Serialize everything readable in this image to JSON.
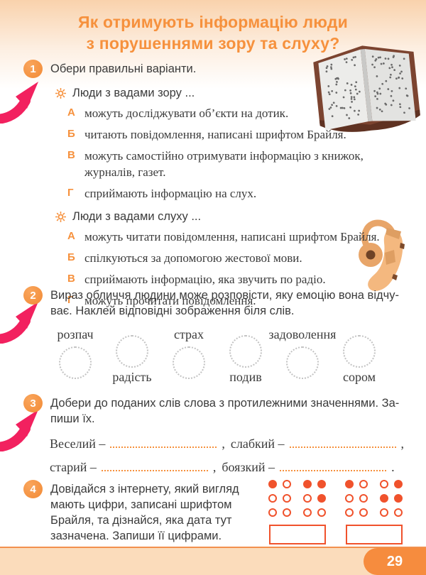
{
  "title": {
    "line1": "Як отримують інформацію люди",
    "line2": "з порушеннями зору та слуху?"
  },
  "colors": {
    "accent_orange": "#f6913d",
    "braille_red": "#f0522c",
    "arrow_pink": "#f2215f",
    "peach": "#fbdcbb",
    "text_dark": "#3b3b3b"
  },
  "task1": {
    "number": "1",
    "instruction": "Обери правильні варіанти.",
    "groups": [
      {
        "label": "Люди з вадами зору ...",
        "options": [
          {
            "letter": "А",
            "text": "можуть досліджувати об’єкти на дотик."
          },
          {
            "letter": "Б",
            "text": "читають повідомлення, написані шрифтом Брайля."
          },
          {
            "letter": "В",
            "text": "можуть самостійно отримувати інформацію з книжок, журналів, газет."
          },
          {
            "letter": "Г",
            "text": "сприймають інформацію на слух."
          }
        ]
      },
      {
        "label": "Люди з вадами слуху ...",
        "options": [
          {
            "letter": "А",
            "text": "можуть читати повідомлення, написані шрифтом Брайля."
          },
          {
            "letter": "Б",
            "text": "спілкуються за допомогою жестової мови."
          },
          {
            "letter": "В",
            "text": "сприймають інформацію, яка звучить по радіо."
          },
          {
            "letter": "Г",
            "text": "можуть прочитати повідомлення."
          }
        ]
      }
    ]
  },
  "task2": {
    "number": "2",
    "instruction_line1": "Вираз обличчя людини може розповісти, яку емоцію вона відчу-",
    "instruction_line2": "ває. Наклей відповідні зображення біля слів.",
    "emotions": [
      "розпач",
      "радість",
      "страх",
      "подив",
      "задоволення",
      "сором"
    ]
  },
  "task3": {
    "number": "3",
    "instruction_line1": "Добери до поданих слів слова з протилежними значеннями. За-",
    "instruction_line2": "пиши їх.",
    "pairs": [
      {
        "word": "Веселий –",
        "sep": ","
      },
      {
        "word": "слабкий –",
        "sep": ","
      },
      {
        "word": "старий –",
        "sep": ","
      },
      {
        "word": "боязкий –",
        "sep": "."
      }
    ]
  },
  "task4": {
    "number": "4",
    "instruction_lines": [
      "Довідайся з інтернету, який вигляд",
      "мають цифри, записані шрифтом",
      "Брайля, та дізнайся, яка дата тут",
      "зазначена. Запиши її цифрами."
    ],
    "braille_groups": [
      {
        "cells": [
          [
            1,
            0,
            0,
            0,
            0,
            0
          ],
          [
            1,
            1,
            0,
            1,
            0,
            0
          ]
        ]
      },
      {
        "cells": [
          [
            1,
            0,
            0,
            0,
            0,
            0
          ],
          [
            0,
            1,
            1,
            1,
            0,
            0
          ]
        ]
      }
    ]
  },
  "footer": {
    "page_number": "29"
  }
}
